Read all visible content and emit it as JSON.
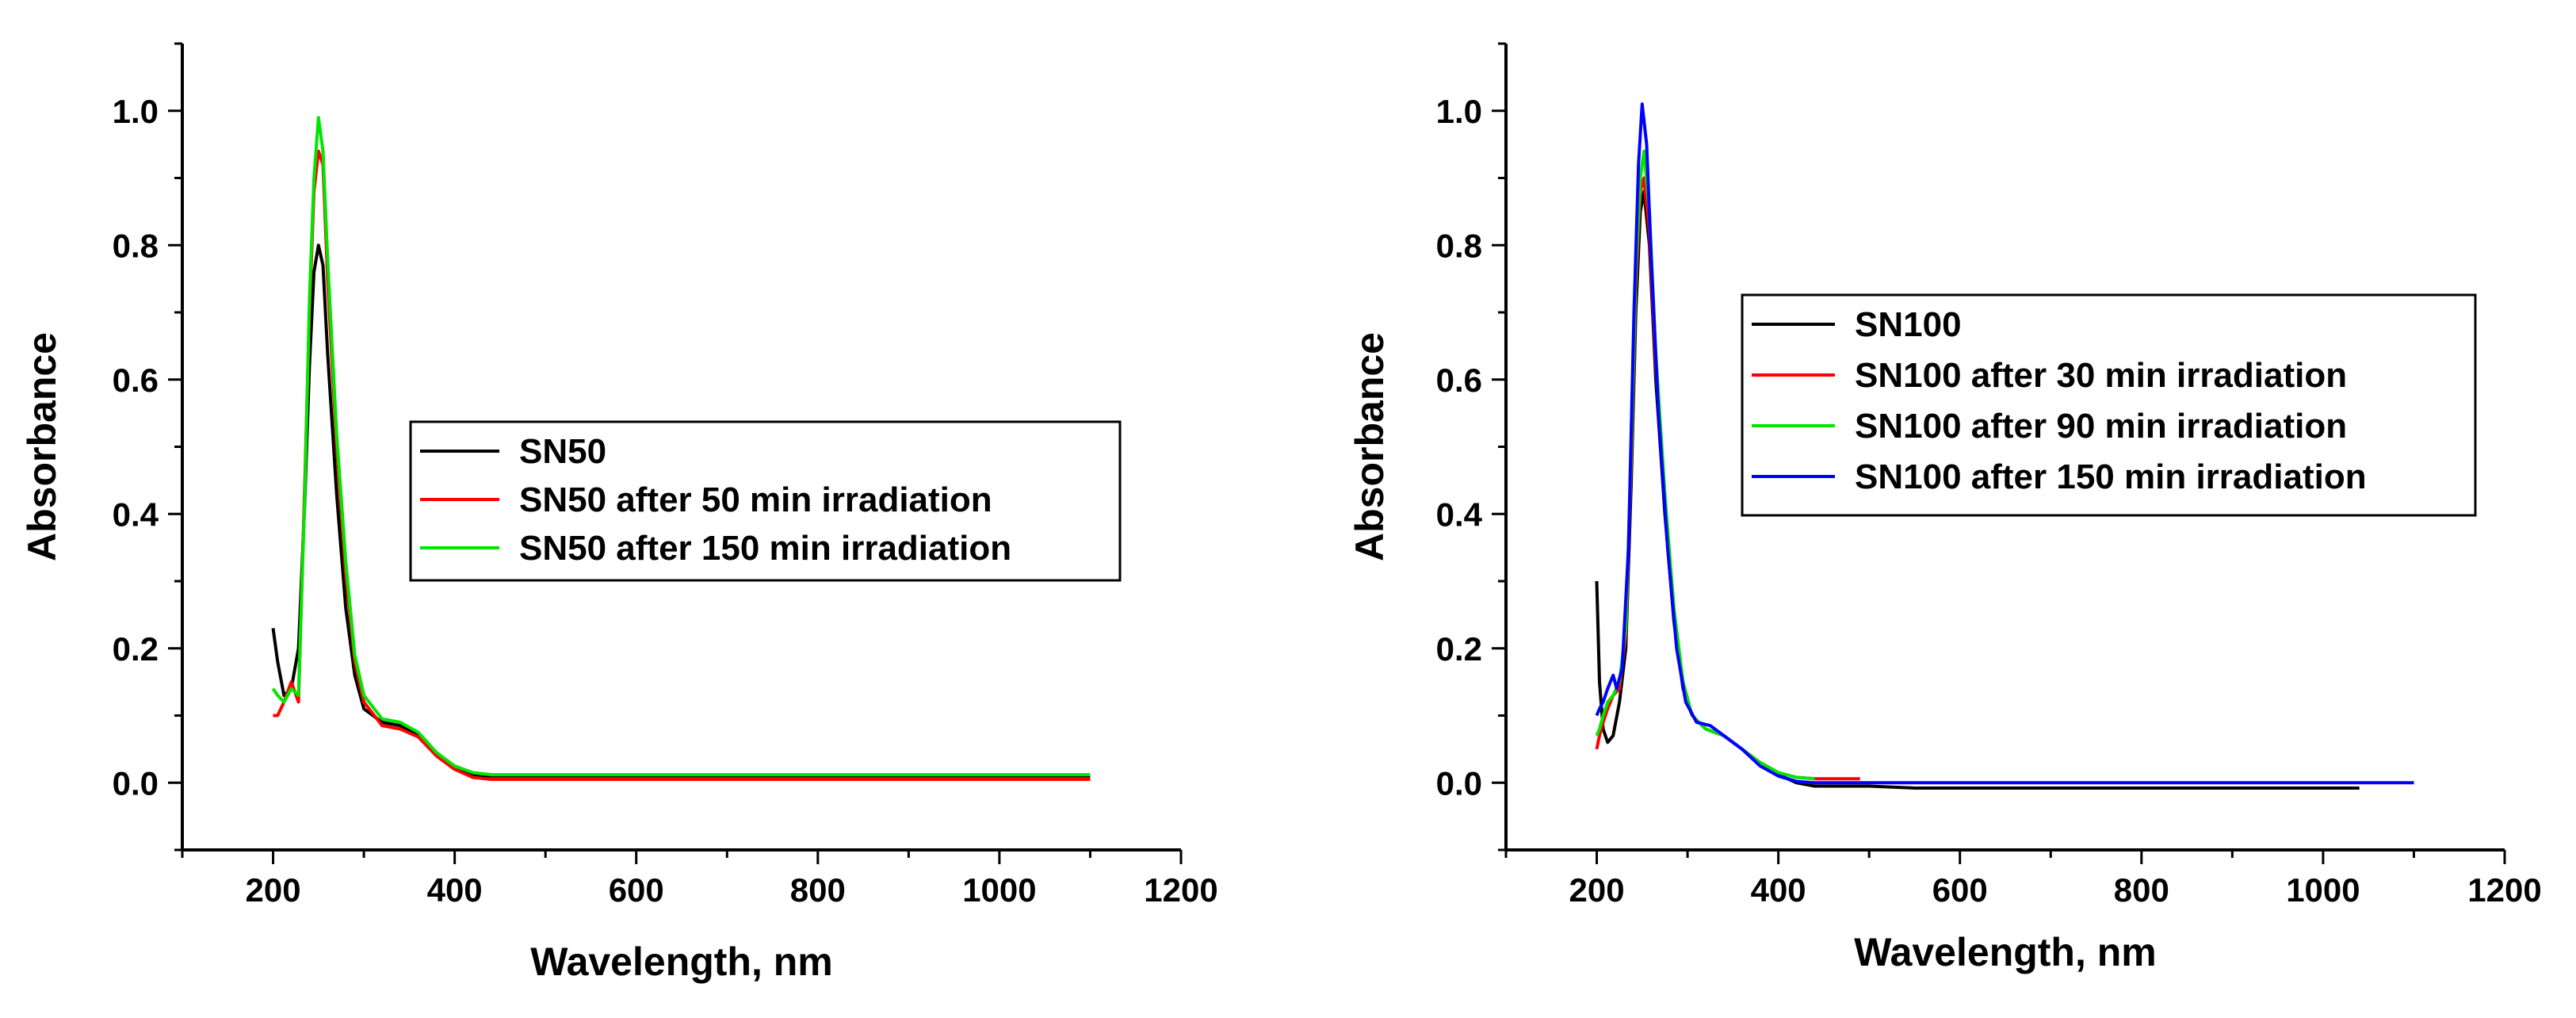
{
  "chart_data": [
    {
      "type": "line",
      "title": "",
      "xlabel": "Wavelength, nm",
      "ylabel": "Absorbance",
      "xlim": [
        100,
        1200
      ],
      "ylim": [
        -0.1,
        1.1
      ],
      "xticks": [
        200,
        400,
        600,
        800,
        1000,
        1200
      ],
      "yticks": [
        "0.0",
        "0.2",
        "0.4",
        "0.6",
        "0.8",
        "1.0"
      ],
      "legend_position": "center-right",
      "series": [
        {
          "name": "SN50",
          "color": "#000000",
          "x": [
            200,
            205,
            212,
            220,
            228,
            235,
            240,
            245,
            250,
            255,
            260,
            270,
            280,
            290,
            300,
            320,
            340,
            360,
            380,
            400,
            420,
            430,
            500,
            600,
            700,
            800,
            900,
            1000,
            1100
          ],
          "y": [
            0.23,
            0.18,
            0.13,
            0.14,
            0.2,
            0.42,
            0.62,
            0.76,
            0.8,
            0.77,
            0.64,
            0.43,
            0.26,
            0.16,
            0.11,
            0.09,
            0.085,
            0.07,
            0.04,
            0.02,
            0.012,
            0.01,
            0.01,
            0.01,
            0.01,
            0.01,
            0.01,
            0.01,
            0.01
          ]
        },
        {
          "name": "SN50 after 50 min irradiation",
          "color": "#ff0000",
          "x": [
            200,
            205,
            212,
            220,
            228,
            235,
            240,
            245,
            250,
            255,
            260,
            270,
            280,
            290,
            300,
            320,
            340,
            360,
            380,
            400,
            420,
            440,
            500,
            600,
            700,
            800,
            900,
            1000,
            1100
          ],
          "y": [
            0.1,
            0.1,
            0.12,
            0.15,
            0.12,
            0.45,
            0.7,
            0.88,
            0.94,
            0.92,
            0.75,
            0.5,
            0.31,
            0.18,
            0.12,
            0.085,
            0.08,
            0.068,
            0.04,
            0.02,
            0.008,
            0.005,
            0.005,
            0.005,
            0.005,
            0.005,
            0.005,
            0.005,
            0.005
          ]
        },
        {
          "name": "SN50 after 150 min irradiation",
          "color": "#00e600",
          "x": [
            200,
            205,
            212,
            220,
            228,
            235,
            240,
            245,
            250,
            255,
            260,
            270,
            280,
            290,
            300,
            320,
            340,
            360,
            380,
            400,
            420,
            440,
            500,
            600,
            700,
            800,
            900,
            1000,
            1100
          ],
          "y": [
            0.14,
            0.13,
            0.12,
            0.14,
            0.13,
            0.43,
            0.72,
            0.9,
            0.99,
            0.94,
            0.78,
            0.52,
            0.33,
            0.19,
            0.13,
            0.095,
            0.09,
            0.075,
            0.045,
            0.025,
            0.015,
            0.012,
            0.012,
            0.012,
            0.012,
            0.012,
            0.012,
            0.012,
            0.012
          ]
        }
      ]
    },
    {
      "type": "line",
      "title": "",
      "xlabel": "Wavelength, nm",
      "ylabel": "Absorbance",
      "xlim": [
        100,
        1200
      ],
      "ylim": [
        -0.1,
        1.1
      ],
      "xticks": [
        200,
        400,
        600,
        800,
        1000,
        1200
      ],
      "yticks": [
        "0.0",
        "0.2",
        "0.4",
        "0.6",
        "0.8",
        "1.0"
      ],
      "legend_position": "center-right",
      "series": [
        {
          "name": "SN100",
          "color": "#000000",
          "x": [
            200,
            203,
            207,
            212,
            218,
            225,
            232,
            238,
            243,
            248,
            252,
            258,
            265,
            275,
            285,
            295,
            305,
            320,
            340,
            360,
            380,
            400,
            420,
            440,
            500,
            550,
            700,
            900,
            1040
          ],
          "y": [
            0.3,
            0.15,
            0.08,
            0.06,
            0.07,
            0.12,
            0.2,
            0.45,
            0.7,
            0.85,
            0.88,
            0.8,
            0.6,
            0.4,
            0.24,
            0.14,
            0.1,
            0.08,
            0.07,
            0.05,
            0.03,
            0.012,
            0.0,
            -0.005,
            -0.005,
            -0.008,
            -0.008,
            -0.008,
            -0.008
          ]
        },
        {
          "name": "SN100 after 30 min irradiation",
          "color": "#ff0000",
          "x": [
            200,
            203,
            207,
            212,
            218,
            225,
            232,
            238,
            243,
            248,
            252,
            258,
            265,
            275,
            285,
            295,
            305,
            320,
            340,
            360,
            380,
            400,
            420,
            440,
            460,
            490
          ],
          "y": [
            0.05,
            0.07,
            0.09,
            0.11,
            0.13,
            0.14,
            0.22,
            0.48,
            0.74,
            0.88,
            0.9,
            0.82,
            0.62,
            0.42,
            0.25,
            0.15,
            0.1,
            0.08,
            0.07,
            0.05,
            0.03,
            0.015,
            0.008,
            0.006,
            0.006,
            0.006
          ]
        },
        {
          "name": "SN100 after 90 min irradiation",
          "color": "#00e600",
          "x": [
            200,
            203,
            207,
            212,
            218,
            225,
            232,
            238,
            243,
            248,
            252,
            258,
            265,
            275,
            285,
            295,
            305,
            320,
            340,
            360,
            380,
            400,
            420,
            440
          ],
          "y": [
            0.07,
            0.08,
            0.1,
            0.12,
            0.13,
            0.15,
            0.23,
            0.5,
            0.76,
            0.9,
            0.94,
            0.85,
            0.64,
            0.43,
            0.26,
            0.15,
            0.1,
            0.08,
            0.07,
            0.05,
            0.03,
            0.015,
            0.008,
            0.006
          ]
        },
        {
          "name": "SN100 after 150 min irradiation",
          "color": "#0000ff",
          "x": [
            200,
            203,
            207,
            212,
            218,
            222,
            228,
            235,
            241,
            246,
            250,
            255,
            260,
            268,
            278,
            288,
            298,
            310,
            325,
            340,
            360,
            380,
            400,
            420,
            440,
            600,
            800,
            1000,
            1100
          ],
          "y": [
            0.1,
            0.11,
            0.12,
            0.14,
            0.16,
            0.14,
            0.17,
            0.35,
            0.7,
            0.92,
            1.01,
            0.95,
            0.78,
            0.55,
            0.35,
            0.2,
            0.12,
            0.09,
            0.085,
            0.07,
            0.05,
            0.025,
            0.01,
            0.002,
            0.0,
            0.0,
            0.0,
            0.0,
            0.0
          ]
        }
      ]
    }
  ]
}
